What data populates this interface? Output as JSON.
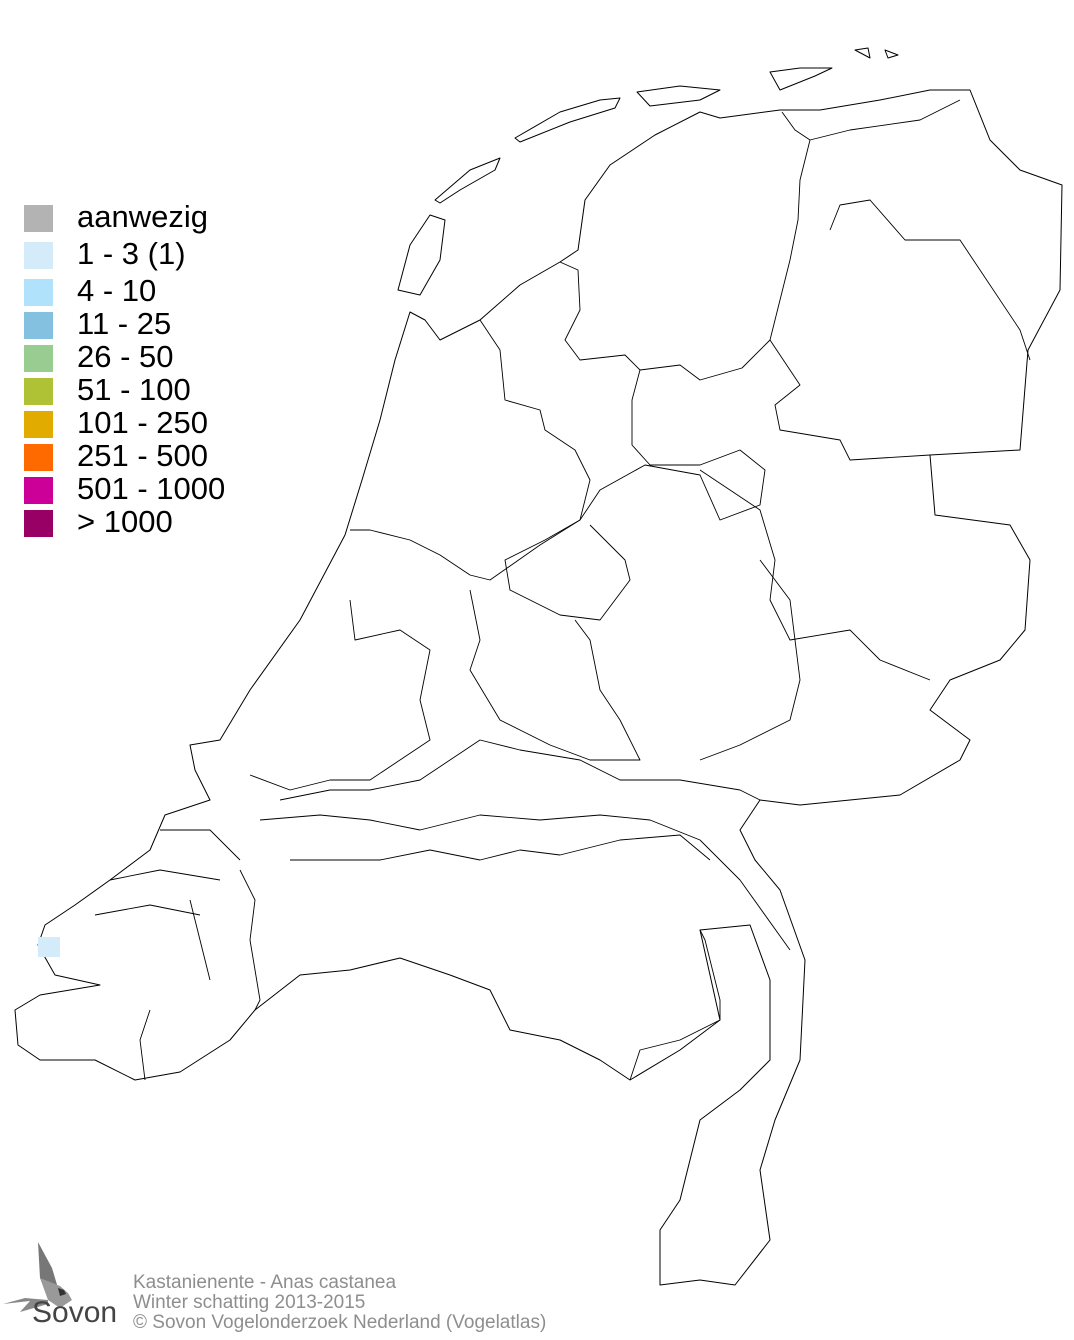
{
  "legend": {
    "items": [
      {
        "label": "aanwezig",
        "color": "#b3b3b3"
      },
      {
        "label": "1 - 3 (1)",
        "color": "#d4ecfa"
      },
      {
        "label": "4 - 10",
        "color": "#b0e2fb"
      },
      {
        "label": "11 - 25",
        "color": "#84c1e0"
      },
      {
        "label": "26 - 50",
        "color": "#98cc90"
      },
      {
        "label": "51 - 100",
        "color": "#afc235"
      },
      {
        "label": "101 - 250",
        "color": "#e2ab00"
      },
      {
        "label": "251 - 500",
        "color": "#ff6a00"
      },
      {
        "label": "501 - 1000",
        "color": "#cc0099"
      },
      {
        "label": "> 1000",
        "color": "#990066"
      }
    ]
  },
  "map": {
    "region": "Netherlands",
    "observations": [
      {
        "category": "1 - 3 (1)",
        "color": "#d4ecfa",
        "location": "Walcheren (Zeeland)"
      }
    ]
  },
  "footer": {
    "species": "Kastanienente - Anas castanea",
    "period": "Winter schatting 2013-2015",
    "copyright": "© Sovon Vogelonderzoek Nederland (Vogelatlas)"
  },
  "logo": {
    "text": "Sovon"
  }
}
